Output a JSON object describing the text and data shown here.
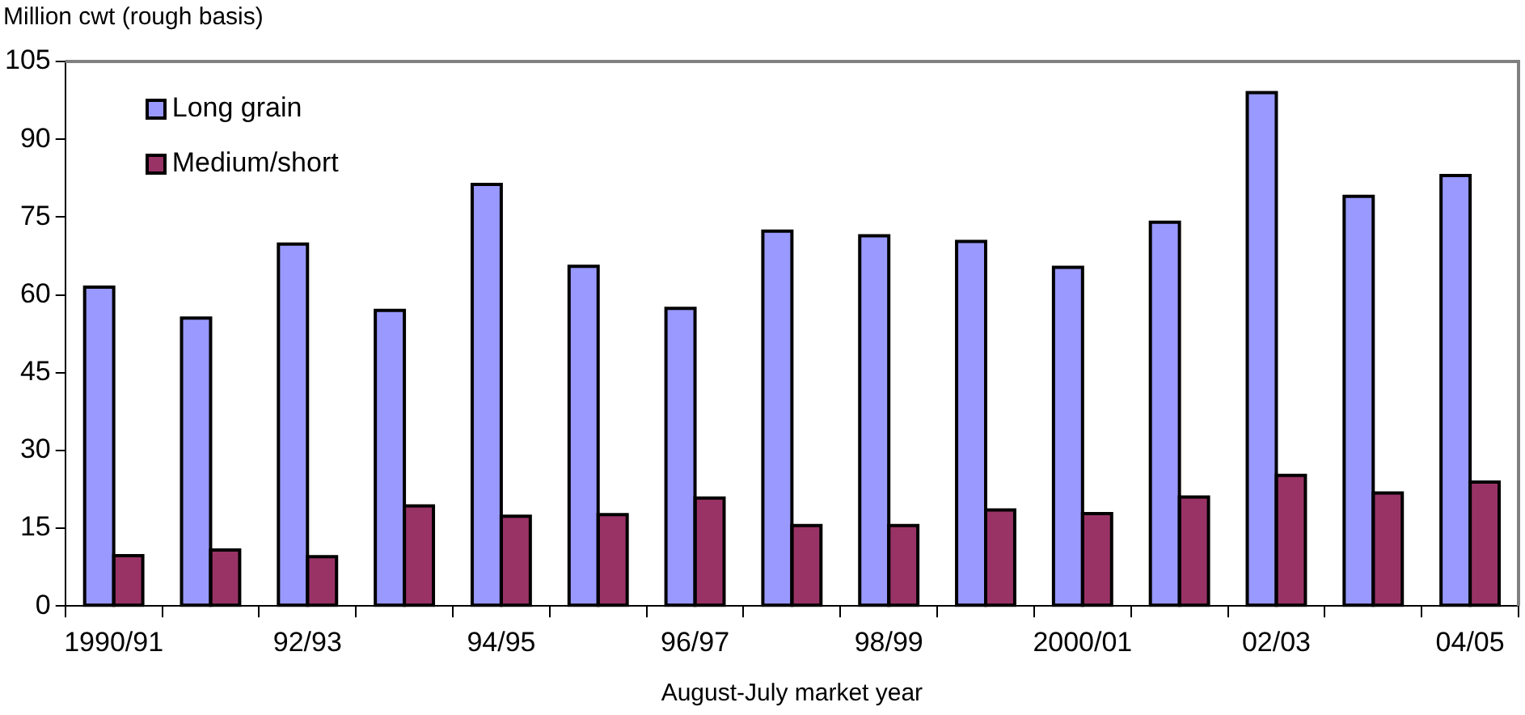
{
  "chart_data": {
    "type": "bar",
    "ylabel": "Million cwt (rough basis)",
    "xlabel": "August-July market year",
    "categories": [
      "1990/91",
      null,
      "92/93",
      null,
      "94/95",
      null,
      "96/97",
      null,
      "98/99",
      null,
      "2000/01",
      null,
      "02/03",
      null,
      "04/05"
    ],
    "series": [
      {
        "name": "Long grain",
        "color": "#9999ff",
        "values": [
          61.5,
          55.5,
          69.8,
          57,
          81.3,
          65.5,
          57.4,
          72.3,
          71.4,
          70.3,
          65.3,
          74,
          99,
          79,
          83
        ]
      },
      {
        "name": "Medium/short",
        "color": "#993366",
        "values": [
          9.7,
          10.8,
          9.5,
          19.3,
          17.3,
          17.6,
          20.8,
          15.5,
          15.5,
          18.5,
          17.8,
          21,
          25.2,
          21.8,
          23.9
        ]
      }
    ],
    "ylim": [
      0,
      105
    ],
    "yticks": [
      0,
      15,
      30,
      45,
      60,
      75,
      90,
      105
    ],
    "grid": false,
    "legend": "top left"
  }
}
